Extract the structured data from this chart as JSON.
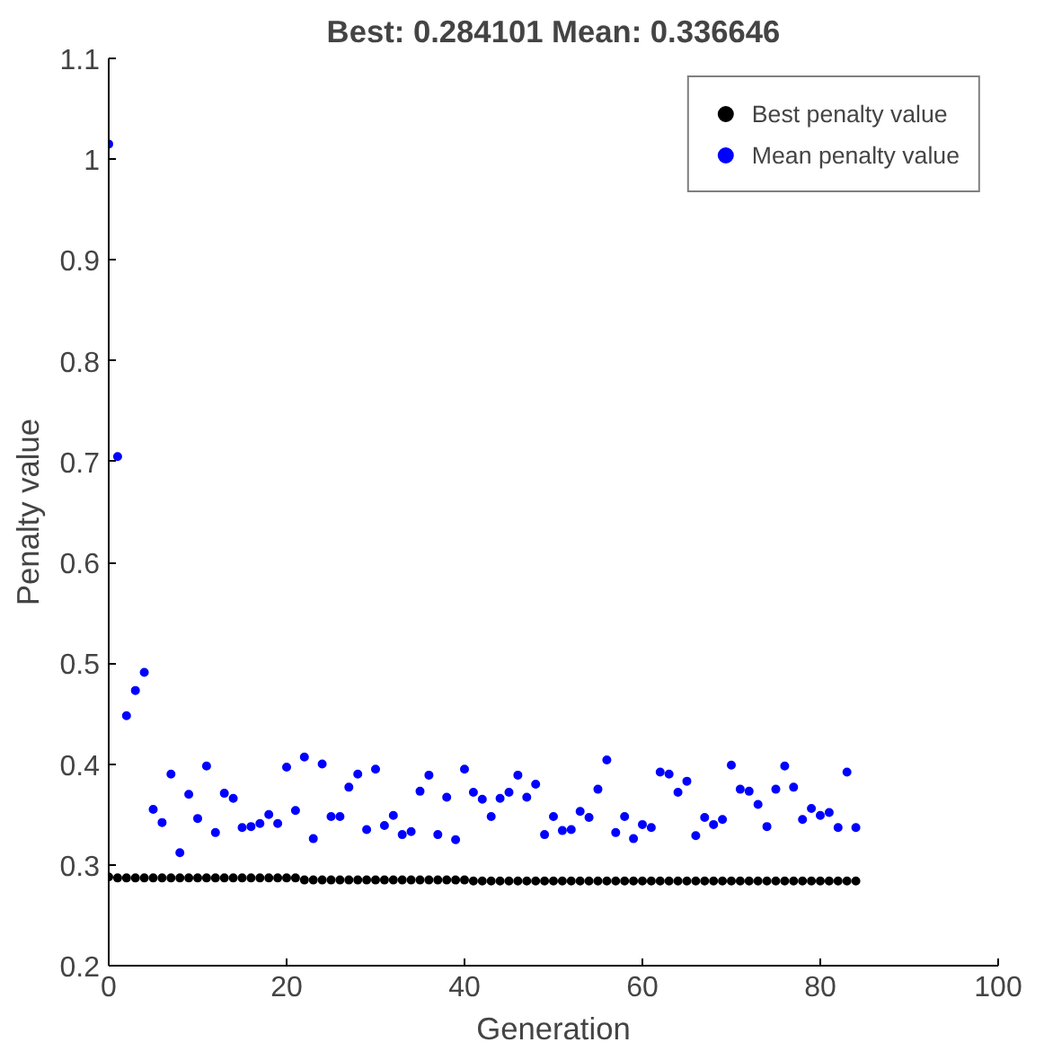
{
  "chart_data": {
    "type": "scatter",
    "title": "Best: 0.284101 Mean: 0.336646",
    "xlabel": "Generation",
    "ylabel": "Penalty value",
    "x": [
      0,
      1,
      2,
      3,
      4,
      5,
      6,
      7,
      8,
      9,
      10,
      11,
      12,
      13,
      14,
      15,
      16,
      17,
      18,
      19,
      20,
      21,
      22,
      23,
      24,
      25,
      26,
      27,
      28,
      29,
      30,
      31,
      32,
      33,
      34,
      35,
      36,
      37,
      38,
      39,
      40,
      41,
      42,
      43,
      44,
      45,
      46,
      47,
      48,
      49,
      50,
      51,
      52,
      53,
      54,
      55,
      56,
      57,
      58,
      59,
      60,
      61,
      62,
      63,
      64,
      65,
      66,
      67,
      68,
      69,
      70,
      71,
      72,
      73,
      74,
      75,
      76,
      77,
      78,
      79,
      80,
      81,
      82,
      83,
      84
    ],
    "series": [
      {
        "name": "Best penalty value",
        "color": "#000000",
        "values": [
          0.288,
          0.287,
          0.287,
          0.287,
          0.287,
          0.287,
          0.287,
          0.287,
          0.287,
          0.287,
          0.287,
          0.287,
          0.287,
          0.287,
          0.287,
          0.287,
          0.287,
          0.287,
          0.287,
          0.287,
          0.287,
          0.287,
          0.285,
          0.285,
          0.285,
          0.285,
          0.285,
          0.285,
          0.285,
          0.285,
          0.285,
          0.285,
          0.285,
          0.285,
          0.285,
          0.285,
          0.285,
          0.285,
          0.285,
          0.285,
          0.285,
          0.284,
          0.284,
          0.284,
          0.284,
          0.284,
          0.284,
          0.284,
          0.284,
          0.284,
          0.284,
          0.284,
          0.284,
          0.284,
          0.284,
          0.284,
          0.284,
          0.284,
          0.284,
          0.284,
          0.284,
          0.284,
          0.284,
          0.284,
          0.284,
          0.284,
          0.284,
          0.284,
          0.284,
          0.284,
          0.284,
          0.284,
          0.284,
          0.284,
          0.284,
          0.284,
          0.284,
          0.284,
          0.284,
          0.284,
          0.284,
          0.284,
          0.284,
          0.284,
          0.284
        ]
      },
      {
        "name": "Mean penalty value",
        "color": "#0000ff",
        "values": [
          1.015,
          0.705,
          0.448,
          0.473,
          0.491,
          0.355,
          0.342,
          0.39,
          0.312,
          0.37,
          0.346,
          0.398,
          0.332,
          0.371,
          0.366,
          0.337,
          0.338,
          0.341,
          0.35,
          0.341,
          0.397,
          0.354,
          0.407,
          0.326,
          0.4,
          0.348,
          0.348,
          0.377,
          0.39,
          0.335,
          0.395,
          0.339,
          0.349,
          0.33,
          0.333,
          0.373,
          0.389,
          0.33,
          0.367,
          0.325,
          0.395,
          0.372,
          0.365,
          0.348,
          0.366,
          0.372,
          0.389,
          0.367,
          0.38,
          0.33,
          0.348,
          0.334,
          0.335,
          0.353,
          0.347,
          0.375,
          0.404,
          0.332,
          0.348,
          0.326,
          0.34,
          0.337,
          0.392,
          0.39,
          0.372,
          0.383,
          0.329,
          0.347,
          0.34,
          0.345,
          0.399,
          0.375,
          0.373,
          0.36,
          0.338,
          0.375,
          0.398,
          0.377,
          0.345,
          0.356,
          0.349,
          0.352,
          0.337,
          0.392,
          0.337
        ]
      }
    ],
    "xlim": [
      0,
      100
    ],
    "xticks": [
      0,
      20,
      40,
      60,
      80,
      100
    ],
    "ylim": [
      0.2,
      1.1
    ],
    "yticks": [
      0.2,
      0.3,
      0.4,
      0.5,
      0.6,
      0.7,
      0.8,
      0.9,
      1,
      1.1
    ],
    "grid": false,
    "legend": "top right",
    "marker": "circle"
  }
}
